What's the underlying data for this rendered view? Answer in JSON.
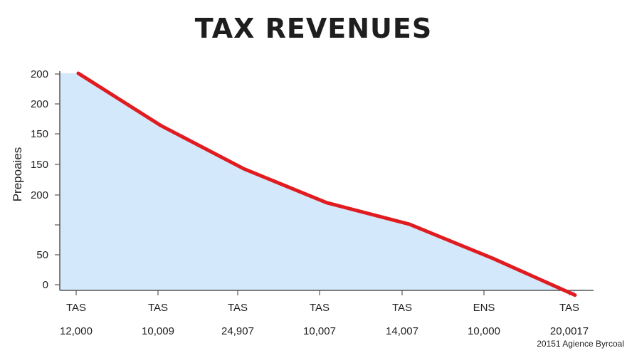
{
  "chart_data": {
    "type": "area",
    "title": "TAX REVENUES",
    "ylabel": "Prepoaies",
    "xlabel": "",
    "y_tick_labels": [
      "0",
      "50",
      "",
      "200",
      "150",
      "150",
      "200",
      "200"
    ],
    "x_tick_labels": [
      "TAS",
      "TAS",
      "TAS",
      "TAS",
      "TAS",
      "ENS",
      "TAS"
    ],
    "x_sub_labels": [
      "12,000",
      "10,009",
      "24,907",
      "10,007",
      "14,007",
      "10,000",
      "20,0017"
    ],
    "credit": "20151 Agience Byrcoal",
    "x": [
      0,
      1,
      2,
      3,
      4,
      5,
      6
    ],
    "values": [
      7,
      5.3,
      3.9,
      2.8,
      2.1,
      1.0,
      -0.2
    ],
    "ylim": [
      0,
      7
    ],
    "grid": false,
    "colors": {
      "line": "#e01c20",
      "fill": "#d4e8fb",
      "axis": "#555555"
    }
  }
}
